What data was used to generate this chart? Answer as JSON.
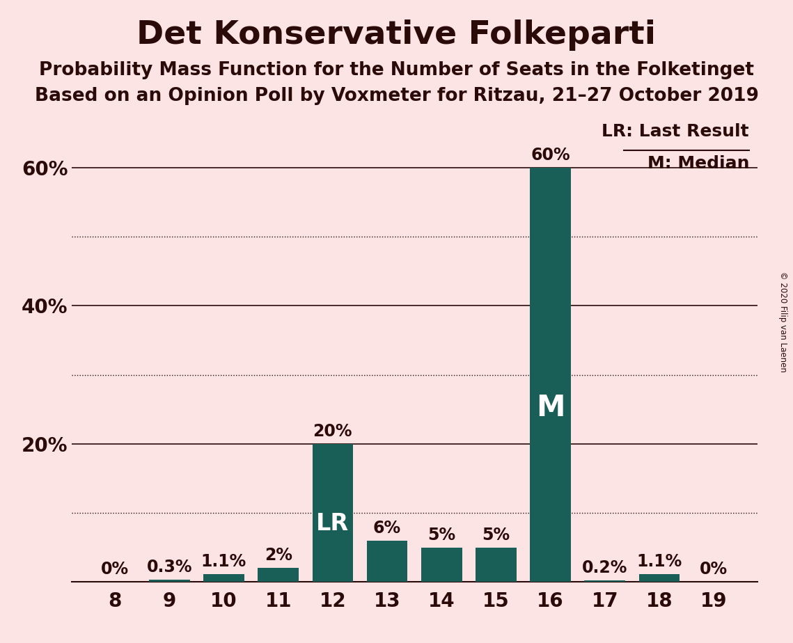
{
  "title": "Det Konservative Folkeparti",
  "subtitle1": "Probability Mass Function for the Number of Seats in the Folketinget",
  "subtitle2": "Based on an Opinion Poll by Voxmeter for Ritzau, 21–27 October 2019",
  "copyright": "© 2020 Filip van Laenen",
  "seats": [
    8,
    9,
    10,
    11,
    12,
    13,
    14,
    15,
    16,
    17,
    18,
    19
  ],
  "probabilities": [
    0.0,
    0.3,
    1.1,
    2.0,
    20.0,
    6.0,
    5.0,
    5.0,
    60.0,
    0.2,
    1.1,
    0.0
  ],
  "bar_color": "#1a5f57",
  "background_color": "#fce4e4",
  "text_color": "#2b0a0a",
  "lr_seat": 12,
  "median_seat": 16,
  "lr_label": "LR",
  "median_label": "M",
  "legend_lr": "LR: Last Result",
  "legend_m": "M: Median",
  "yticks_solid": [
    0,
    20,
    40,
    60
  ],
  "yticks_dotted": [
    10,
    30,
    50
  ],
  "ylim": [
    0,
    68
  ],
  "xlim": [
    7.2,
    19.8
  ],
  "xlabel_fontsize": 20,
  "ylabel_fontsize": 20,
  "title_fontsize": 34,
  "subtitle_fontsize": 19,
  "bar_label_fontsize": 17,
  "lr_annotation_fontsize": 24,
  "m_annotation_fontsize": 30,
  "legend_fontsize": 18
}
